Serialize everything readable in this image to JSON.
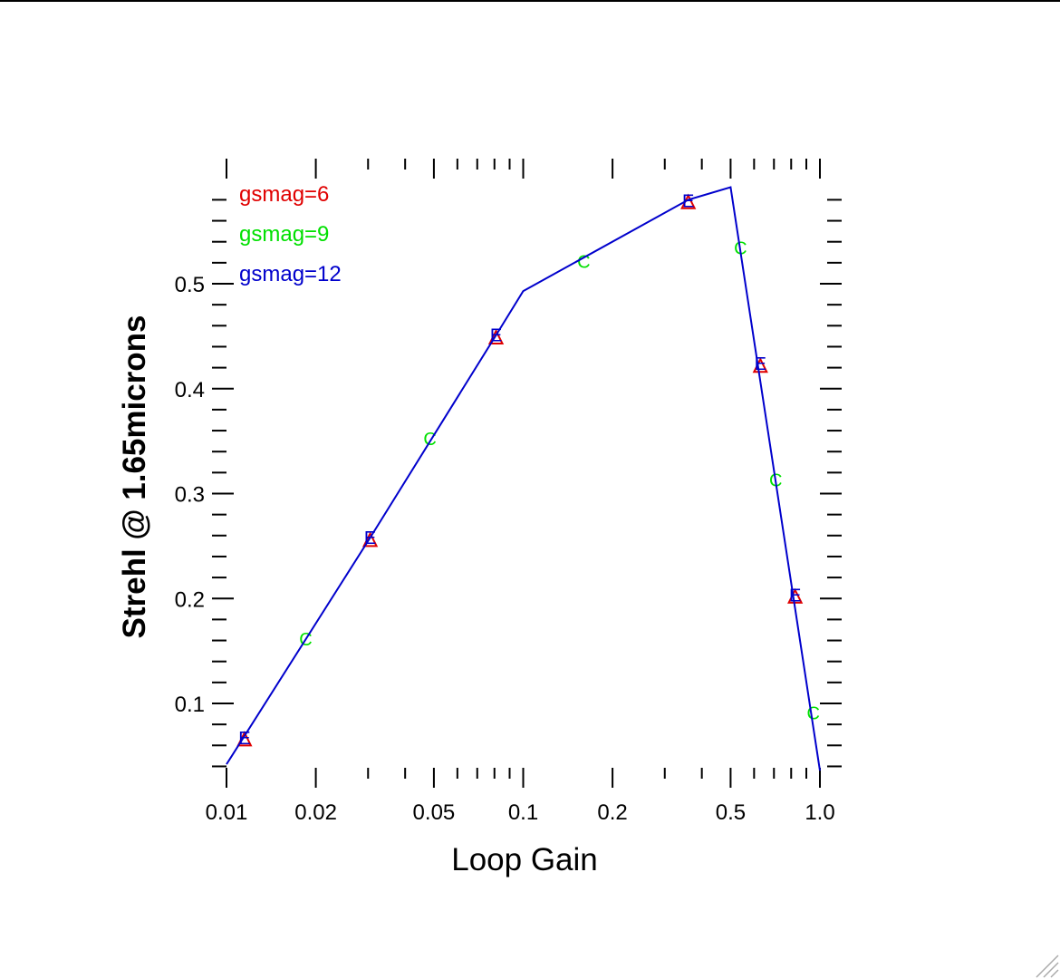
{
  "chart_data": {
    "type": "line",
    "xlabel": "Loop Gain",
    "ylabel": "Strehl @ 1.65microns",
    "xscale": "log",
    "xlim": [
      0.01,
      1.0
    ],
    "ylim": [
      0.036,
      0.6
    ],
    "x_ticks_major": [
      {
        "value": 0.01,
        "label": "0.01"
      },
      {
        "value": 0.02,
        "label": "0.02"
      },
      {
        "value": 0.05,
        "label": "0.05"
      },
      {
        "value": 0.1,
        "label": "0.1"
      },
      {
        "value": 0.2,
        "label": "0.2"
      },
      {
        "value": 0.5,
        "label": "0.5"
      },
      {
        "value": 1.0,
        "label": "1.0"
      }
    ],
    "y_ticks_major": [
      {
        "value": 0.1,
        "label": "0.1"
      },
      {
        "value": 0.2,
        "label": "0.2"
      },
      {
        "value": 0.3,
        "label": "0.3"
      },
      {
        "value": 0.4,
        "label": "0.4"
      },
      {
        "value": 0.5,
        "label": "0.5"
      }
    ],
    "legend_position": "top-left",
    "series": [
      {
        "name": "gsmag=6",
        "color": "#e00000",
        "marker": "triangle",
        "x": [
          0.0115,
          0.0305,
          0.081,
          0.36,
          0.63,
          0.825
        ],
        "y": [
          0.066,
          0.256,
          0.449,
          0.578,
          0.422,
          0.202
        ]
      },
      {
        "name": "gsmag=9",
        "color": "#00e000",
        "marker": "C",
        "x": [
          0.0185,
          0.0485,
          0.16,
          0.54,
          0.71,
          0.95
        ],
        "y": [
          0.162,
          0.353,
          0.522,
          0.535,
          0.314,
          0.092
        ]
      },
      {
        "name": "gsmag=12",
        "color": "#0000cc",
        "marker": "E",
        "line_x": [
          0.01,
          0.0305,
          0.081,
          0.1,
          0.36,
          0.5,
          1.0
        ],
        "line_y": [
          0.042,
          0.258,
          0.451,
          0.493,
          0.58,
          0.592,
          0.036
        ],
        "x": [
          0.0115,
          0.0305,
          0.081,
          0.36,
          0.63,
          0.825
        ],
        "y": [
          0.068,
          0.259,
          0.452,
          0.58,
          0.425,
          0.204
        ]
      }
    ]
  }
}
